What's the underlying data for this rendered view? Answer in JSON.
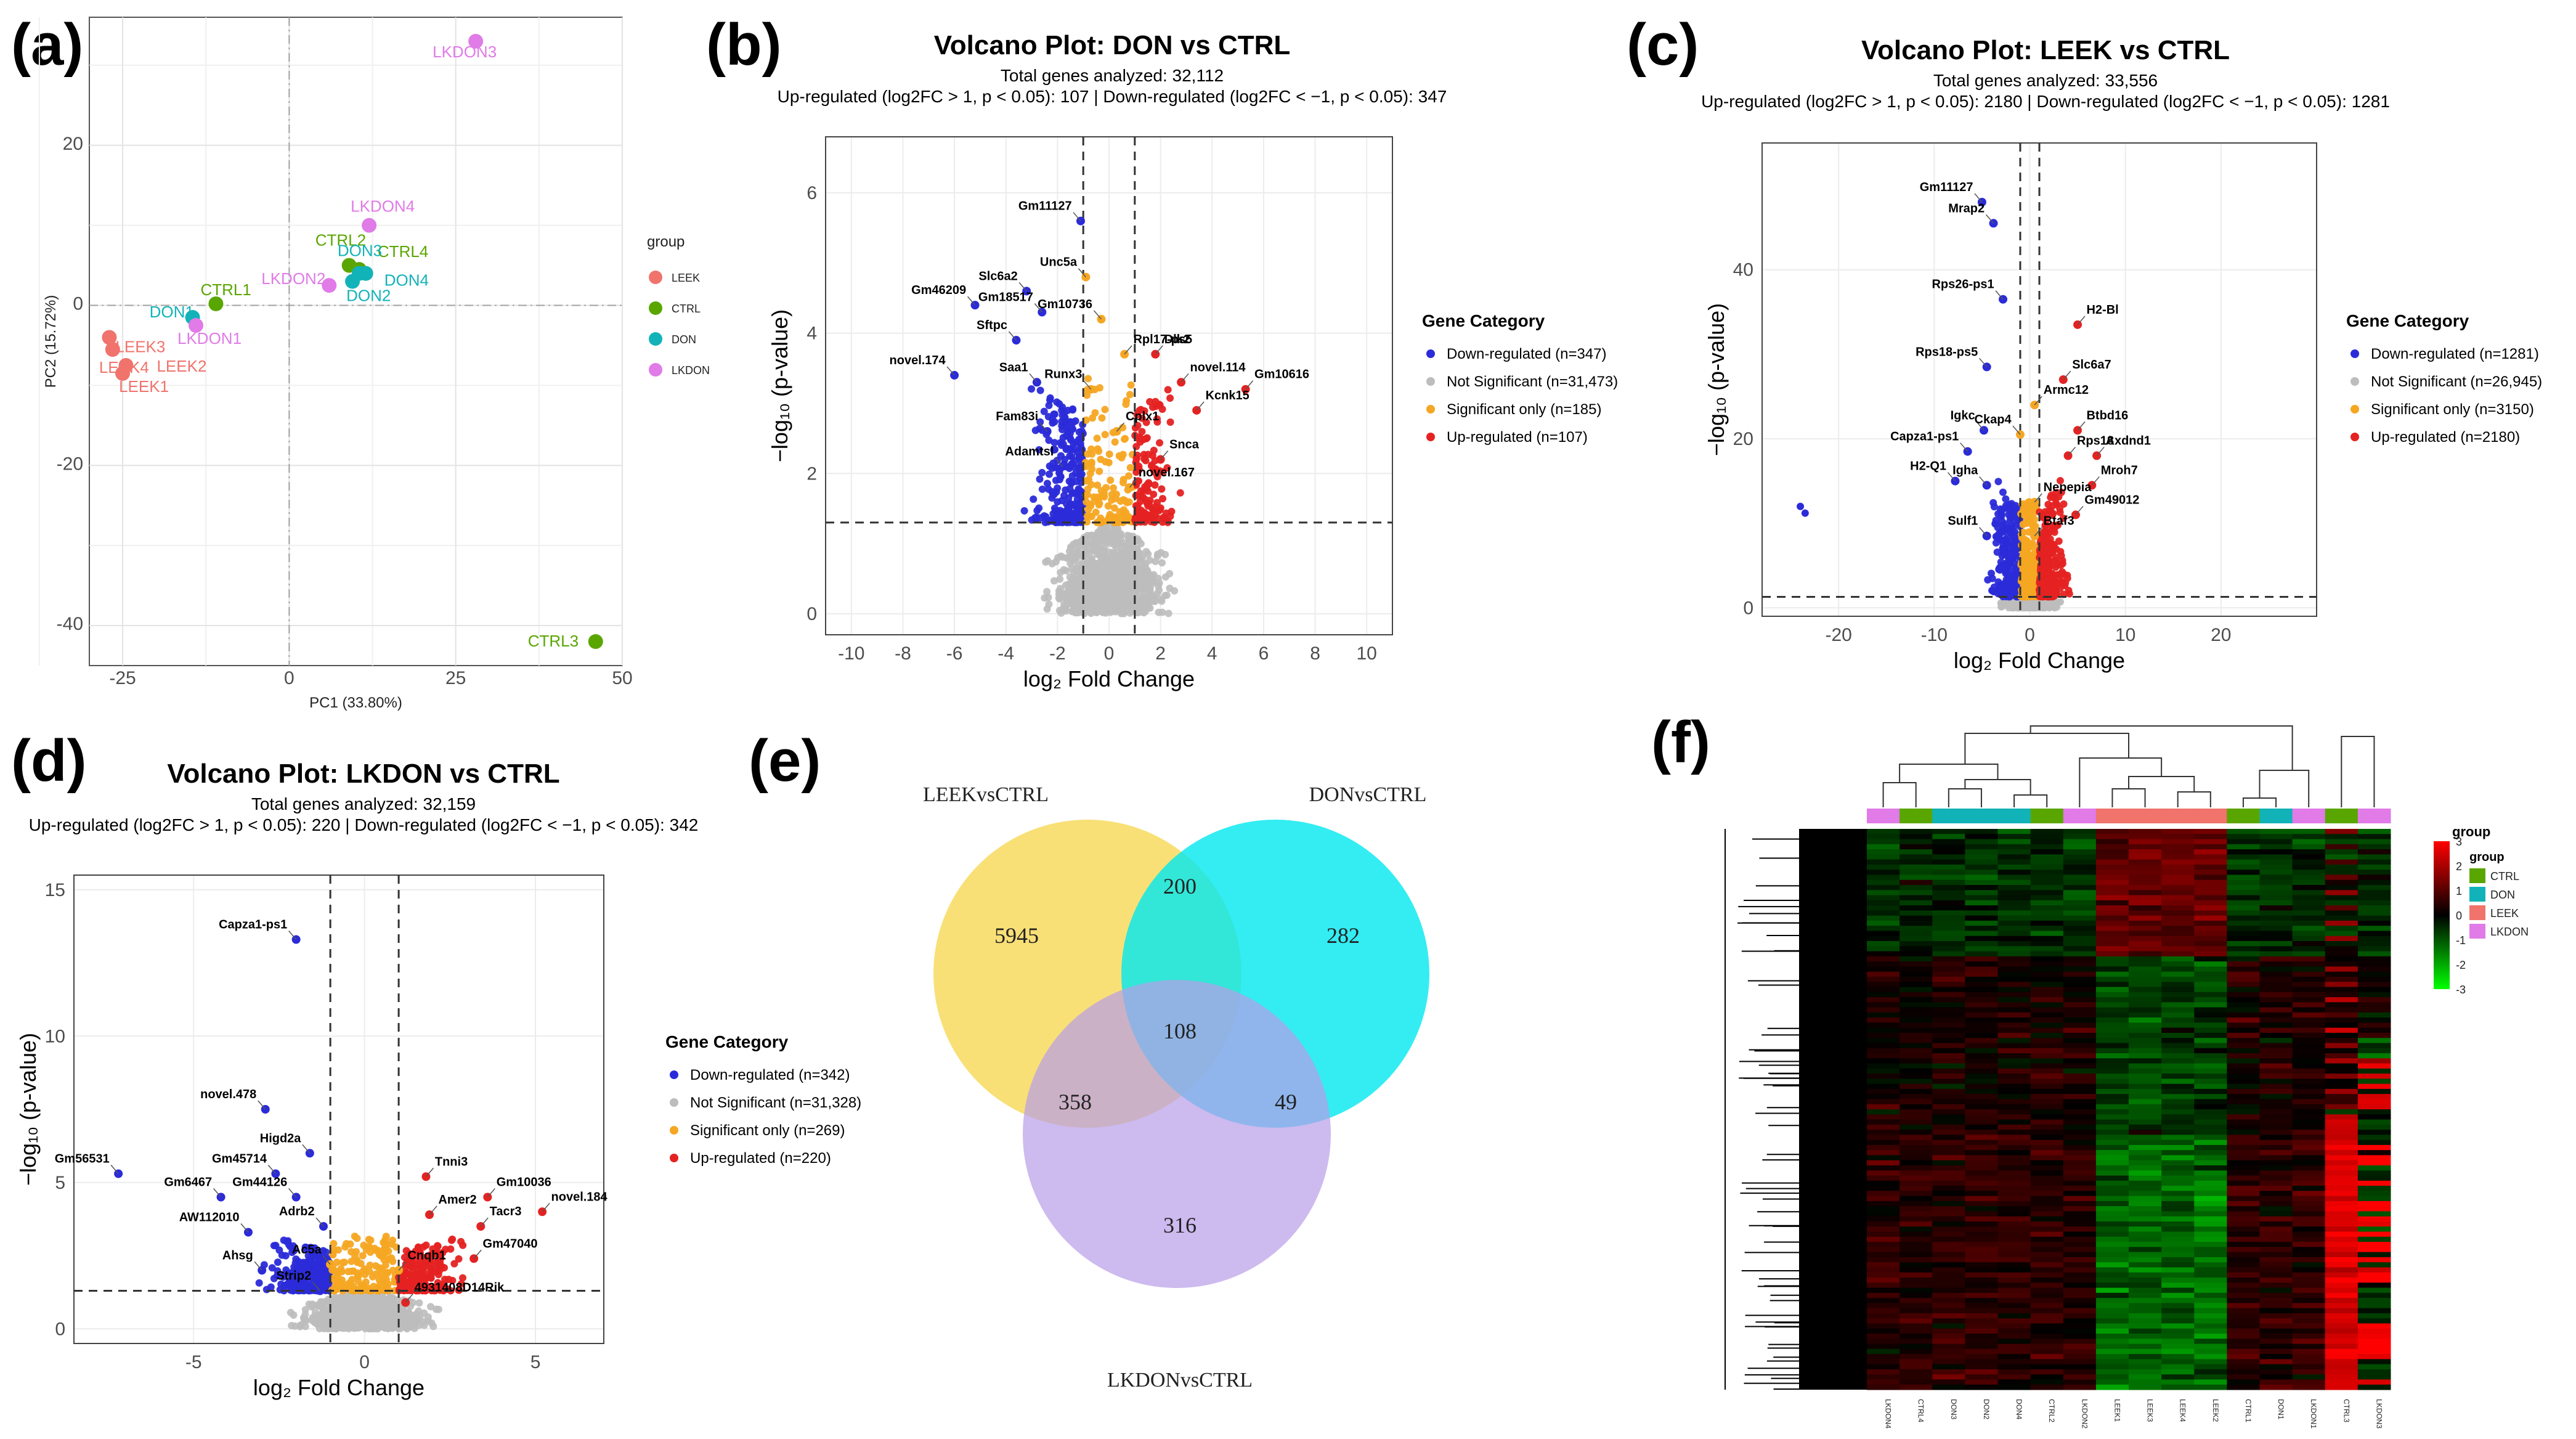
{
  "panel_labels": [
    "(a)",
    "(b)",
    "(c)",
    "(d)",
    "(e)",
    "(f)"
  ],
  "colors": {
    "down": "#2b2bd9",
    "ns": "#bdbdbd",
    "sig": "#f5a623",
    "up": "#e52222",
    "LEEK": "#f0736c",
    "CTRL": "#5aa600",
    "DON": "#12b3b8",
    "LKDON": "#e07be8"
  },
  "chart_data": [
    {
      "id": "pca",
      "type": "scatter",
      "xlabel": "PC1 (33.80%)",
      "ylabel": "PC2 (15.72%)",
      "xlim": [
        -30,
        50
      ],
      "ylim": [
        -45,
        36
      ],
      "xticks": [
        -25,
        0,
        25,
        50
      ],
      "yticks": [
        -40,
        -20,
        0,
        20
      ],
      "legend_title": "group",
      "legend": [
        "LEEK",
        "CTRL",
        "DON",
        "LKDON"
      ],
      "points": [
        {
          "label": "LEEK3",
          "group": "LEEK",
          "x": -27,
          "y": -4
        },
        {
          "label": "LEEK4",
          "group": "LEEK",
          "x": -26.5,
          "y": -5.5
        },
        {
          "label": "LEEK2",
          "group": "LEEK",
          "x": -24.5,
          "y": -7.5
        },
        {
          "label": "LEEK1",
          "group": "LEEK",
          "x": -25,
          "y": -8.5
        },
        {
          "label": "CTRL1",
          "group": "CTRL",
          "x": -11,
          "y": 0.2
        },
        {
          "label": "CTRL2",
          "group": "CTRL",
          "x": 9,
          "y": 5
        },
        {
          "label": "CTRL4",
          "group": "CTRL",
          "x": 10.5,
          "y": 4.5
        },
        {
          "label": "CTRL3",
          "group": "CTRL",
          "x": 46,
          "y": -42
        },
        {
          "label": "DON1",
          "group": "DON",
          "x": -14.5,
          "y": -1.5
        },
        {
          "label": "DON3",
          "group": "DON",
          "x": 10.5,
          "y": 4
        },
        {
          "label": "DON4",
          "group": "DON",
          "x": 11.5,
          "y": 4
        },
        {
          "label": "DON2",
          "group": "DON",
          "x": 9.5,
          "y": 3
        },
        {
          "label": "LKDON1",
          "group": "LKDON",
          "x": -14,
          "y": -2.5
        },
        {
          "label": "LKDON2",
          "group": "LKDON",
          "x": 6,
          "y": 2.5
        },
        {
          "label": "LKDON4",
          "group": "LKDON",
          "x": 12,
          "y": 10
        },
        {
          "label": "LKDON3",
          "group": "LKDON",
          "x": 28,
          "y": 33
        }
      ]
    },
    {
      "id": "volcano_don",
      "type": "scatter",
      "title": "Volcano Plot: DON vs CTRL",
      "subtitle1": "Total genes analyzed: 32,112",
      "subtitle2": "Up-regulated (log2FC > 1, p < 0.05): 107  | Down-regulated (log2FC < −1, p < 0.05): 347",
      "xlabel": "log₂ Fold Change",
      "ylabel": "−log₁₀ (p-value)",
      "xlim": [
        -11,
        11
      ],
      "ylim": [
        -0.3,
        6.8
      ],
      "xticks": [
        -10,
        -8,
        -6,
        -4,
        -2,
        0,
        2,
        4,
        6,
        8,
        10
      ],
      "yticks": [
        0,
        2,
        4,
        6
      ],
      "vlines": [
        -1,
        1
      ],
      "hline": 1.3,
      "legend_title": "Gene Category",
      "legend": [
        "Down-regulated (n=347)",
        "Not Significant (n=31,473)",
        "Significant only (n=185)",
        "Up-regulated (n=107)"
      ],
      "counts": {
        "down": 347,
        "ns": 31473,
        "sig": 185,
        "up": 107
      },
      "spread": {
        "down": [
          -6.2,
          -1
        ],
        "up": [
          1,
          5.5
        ],
        "nsx": 6,
        "maxy": 4.6
      },
      "genes": [
        {
          "name": "Gm11127",
          "x": -1.1,
          "y": 5.6
        },
        {
          "name": "Slc6a2",
          "x": -3.2,
          "y": 4.6
        },
        {
          "name": "Gm46209",
          "x": -5.2,
          "y": 4.4
        },
        {
          "name": "Gm18517",
          "x": -2.6,
          "y": 4.3
        },
        {
          "name": "Unc5a",
          "x": -0.9,
          "y": 4.8
        },
        {
          "name": "Gm10736",
          "x": -0.3,
          "y": 4.2
        },
        {
          "name": "Sftpc",
          "x": -3.6,
          "y": 3.9
        },
        {
          "name": "Rpl17-ps5",
          "x": 0.6,
          "y": 3.7
        },
        {
          "name": "Dlk2",
          "x": 1.8,
          "y": 3.7
        },
        {
          "name": "novel.174",
          "x": -6.0,
          "y": 3.4
        },
        {
          "name": "Saa1",
          "x": -2.8,
          "y": 3.3
        },
        {
          "name": "Runx3",
          "x": -0.7,
          "y": 3.2
        },
        {
          "name": "novel.114",
          "x": 2.8,
          "y": 3.3
        },
        {
          "name": "Gm10616",
          "x": 5.3,
          "y": 3.2
        },
        {
          "name": "Kcnk15",
          "x": 3.4,
          "y": 2.9
        },
        {
          "name": "Fam83i",
          "x": -2.4,
          "y": 2.6
        },
        {
          "name": "Cplx1",
          "x": 0.3,
          "y": 2.6
        },
        {
          "name": "Adamtsl",
          "x": -1.8,
          "y": 2.1
        },
        {
          "name": "Snca",
          "x": 2.0,
          "y": 2.2
        },
        {
          "name": "novel.167",
          "x": 0.8,
          "y": 1.8
        }
      ]
    },
    {
      "id": "volcano_leek",
      "type": "scatter",
      "title": "Volcano Plot: LEEK vs CTRL",
      "subtitle1": "Total genes analyzed: 33,556",
      "subtitle2": "Up-regulated (log2FC > 1, p < 0.05): 2180  | Down-regulated (log2FC < −1, p < 0.05): 1281",
      "xlabel": "log₂ Fold Change",
      "ylabel": "−log₁₀ (p-value)",
      "xlim": [
        -28,
        30
      ],
      "ylim": [
        -1,
        55
      ],
      "xticks": [
        -20,
        -10,
        0,
        10,
        20
      ],
      "yticks": [
        0,
        20,
        40
      ],
      "vlines": [
        -1,
        1
      ],
      "hline": 1.3,
      "legend_title": "Gene Category",
      "legend": [
        "Down-regulated (n=1281)",
        "Not Significant (n=26,945)",
        "Significant only (n=3150)",
        "Up-regulated (n=2180)"
      ],
      "counts": {
        "down": 1281,
        "ns": 26945,
        "sig": 3150,
        "up": 2180
      },
      "spread": {
        "down": [
          -9,
          -1
        ],
        "up": [
          1,
          9
        ],
        "nsx": 7,
        "maxy": 25
      },
      "genes": [
        {
          "name": "Gm11127",
          "x": -5,
          "y": 48
        },
        {
          "name": "Mrap2",
          "x": -3.8,
          "y": 45.5
        },
        {
          "name": "Rps26-ps1",
          "x": -2.8,
          "y": 36.5
        },
        {
          "name": "H2-Bl",
          "x": 5,
          "y": 33.5
        },
        {
          "name": "Rps18-ps5",
          "x": -4.5,
          "y": 28.5
        },
        {
          "name": "Slc6a7",
          "x": 3.5,
          "y": 27
        },
        {
          "name": "Armc12",
          "x": 0.5,
          "y": 24
        },
        {
          "name": "Igkc",
          "x": -4.8,
          "y": 21
        },
        {
          "name": "Btbd16",
          "x": 5,
          "y": 21
        },
        {
          "name": "Ckap4",
          "x": -1.0,
          "y": 20.5
        },
        {
          "name": "Capza1-ps1",
          "x": -6.5,
          "y": 18.5
        },
        {
          "name": "Rps18",
          "x": 4,
          "y": 18
        },
        {
          "name": "Axdnd1",
          "x": 7,
          "y": 18
        },
        {
          "name": "H2-Q1",
          "x": -7.8,
          "y": 15
        },
        {
          "name": "Igha",
          "x": -4.5,
          "y": 14.5
        },
        {
          "name": "Mroh7",
          "x": 6.5,
          "y": 14.5
        },
        {
          "name": "Nepepia",
          "x": 0.5,
          "y": 12.5
        },
        {
          "name": "Gm49012",
          "x": 4.8,
          "y": 11
        },
        {
          "name": "Sulf1",
          "x": -4.5,
          "y": 8.5
        },
        {
          "name": "Btaf3",
          "x": 0.5,
          "y": 8.5
        }
      ],
      "extra_points": [
        {
          "x": -24,
          "y": 12
        },
        {
          "x": -23.5,
          "y": 11.2
        }
      ]
    },
    {
      "id": "volcano_lkdon",
      "type": "scatter",
      "title": "Volcano Plot: LKDON vs CTRL",
      "subtitle1": "Total genes analyzed: 32,159",
      "subtitle2": "Up-regulated (log2FC > 1, p < 0.05): 220  | Down-regulated (log2FC < −1, p < 0.05): 342",
      "xlabel": "log₂ Fold Change",
      "ylabel": "−log₁₀ (p-value)",
      "xlim": [
        -8.5,
        7
      ],
      "ylim": [
        -0.5,
        15.5
      ],
      "xticks": [
        -5,
        0,
        5
      ],
      "yticks": [
        0,
        5,
        10,
        15
      ],
      "vlines": [
        -1,
        1
      ],
      "hline": 1.3,
      "legend_title": "Gene Category",
      "legend": [
        "Down-regulated (n=342)",
        "Not Significant (n=31,328)",
        "Significant only (n=269)",
        "Up-regulated (n=220)"
      ],
      "counts": {
        "down": 342,
        "ns": 31328,
        "sig": 269,
        "up": 220
      },
      "spread": {
        "down": [
          -6,
          -1
        ],
        "up": [
          1,
          6.2
        ],
        "nsx": 5,
        "maxy": 4.2
      },
      "genes": [
        {
          "name": "Capza1-ps1",
          "x": -2,
          "y": 13.3
        },
        {
          "name": "novel.478",
          "x": -2.9,
          "y": 7.5
        },
        {
          "name": "Higd2a",
          "x": -1.6,
          "y": 6
        },
        {
          "name": "Gm56531",
          "x": -7.2,
          "y": 5.3
        },
        {
          "name": "Gm45714",
          "x": -2.6,
          "y": 5.3
        },
        {
          "name": "Tnni3",
          "x": 1.8,
          "y": 5.2
        },
        {
          "name": "Gm10036",
          "x": 3.6,
          "y": 4.5
        },
        {
          "name": "Gm6467",
          "x": -4.2,
          "y": 4.5
        },
        {
          "name": "Gm44126",
          "x": -2.0,
          "y": 4.5
        },
        {
          "name": "novel.184",
          "x": 5.2,
          "y": 4.0
        },
        {
          "name": "Amer2",
          "x": 1.9,
          "y": 3.9
        },
        {
          "name": "Adrb2",
          "x": -1.2,
          "y": 3.5
        },
        {
          "name": "Tacr3",
          "x": 3.4,
          "y": 3.5
        },
        {
          "name": "AW112010",
          "x": -3.4,
          "y": 3.3
        },
        {
          "name": "Gm47040",
          "x": 3.2,
          "y": 2.4
        },
        {
          "name": "Ahsg",
          "x": -3.0,
          "y": 2.0
        },
        {
          "name": "Ac5a",
          "x": -1.0,
          "y": 2.2
        },
        {
          "name": "Cnqb1",
          "x": 1.0,
          "y": 2.0
        },
        {
          "name": "Strip2",
          "x": -1.3,
          "y": 1.3
        },
        {
          "name": "4931408D14Rik",
          "x": 1.2,
          "y": 0.9
        }
      ]
    },
    {
      "id": "venn",
      "type": "venn",
      "sets": [
        "LEEKvsCTRL",
        "DONvsCTRL",
        "LKDONvsCTRL"
      ],
      "regions": {
        "leek_only": 5945,
        "don_only": 282,
        "lkdon_only": 316,
        "leek_don": 200,
        "leek_lkdon": 358,
        "don_lkdon": 49,
        "all": 108
      }
    },
    {
      "id": "heatmap",
      "type": "heatmap",
      "columns": [
        "LKDON4",
        "CTRL4",
        "DON3",
        "DON2",
        "DON4",
        "CTRL2",
        "LKDON2",
        "LEEK1",
        "LEEK3",
        "LEEK4",
        "LEEK2",
        "CTRL1",
        "DON1",
        "LKDON1",
        "CTRL3",
        "LKDON3"
      ],
      "column_groups": [
        "LKDON",
        "CTRL",
        "DON",
        "DON",
        "DON",
        "CTRL",
        "LKDON",
        "LEEK",
        "LEEK",
        "LEEK",
        "LEEK",
        "CTRL",
        "DON",
        "LKDON",
        "CTRL",
        "LKDON"
      ],
      "scale_title": "group",
      "scale_ticks": [
        3,
        2,
        1,
        0,
        -1,
        -2,
        -3
      ],
      "legend_title": "group",
      "legend": [
        "CTRL",
        "DON",
        "LEEK",
        "LKDON"
      ]
    }
  ]
}
